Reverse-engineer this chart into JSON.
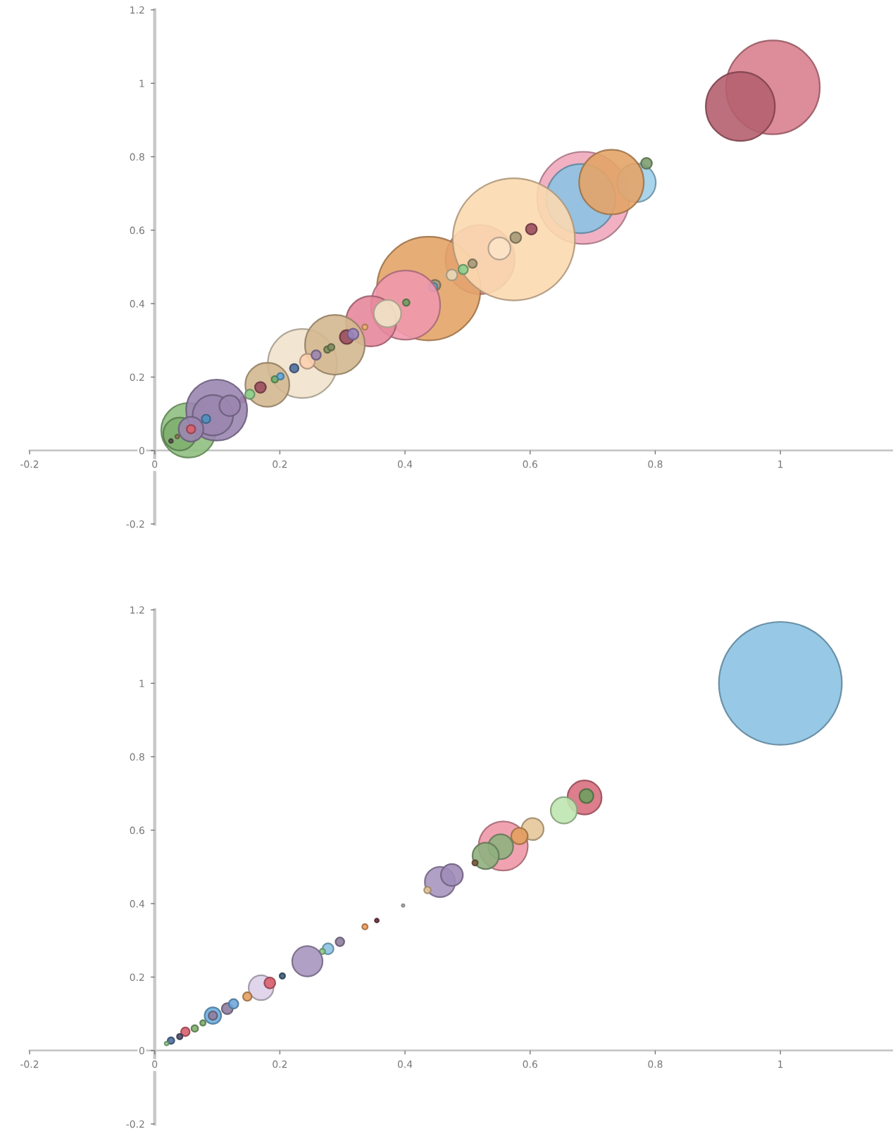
{
  "chart_data": [
    {
      "type": "bubble",
      "xlim": [
        -0.2,
        1.18
      ],
      "ylim": [
        -0.2,
        1.2
      ],
      "xticks": [
        -0.2,
        0,
        0.2,
        0.4,
        0.6,
        0.8,
        1
      ],
      "yticks": [
        -0.2,
        0,
        0.2,
        0.4,
        0.6,
        0.8,
        1,
        1.2
      ],
      "grid": false,
      "marker": "circle",
      "x": [
        0.988,
        0.936,
        0.685,
        0.681,
        0.77,
        0.786,
        0.73,
        0.52,
        0.438,
        0.574,
        0.551,
        0.602,
        0.577,
        0.508,
        0.493,
        0.475,
        0.448,
        0.445,
        0.401,
        0.402,
        0.346,
        0.372,
        0.336,
        0.236,
        0.288,
        0.307,
        0.317,
        0.244,
        0.258,
        0.276,
        0.282,
        0.223,
        0.18,
        0.169,
        0.192,
        0.201,
        0.152,
        0.141,
        0.054,
        0.04,
        0.099,
        0.093,
        0.12,
        0.058,
        0.058,
        0.082,
        0.026,
        0.036
      ],
      "values": [
        0.989,
        0.937,
        0.688,
        0.686,
        0.729,
        0.782,
        0.731,
        0.52,
        0.441,
        0.575,
        0.55,
        0.603,
        0.58,
        0.509,
        0.493,
        0.478,
        0.45,
        0.445,
        0.396,
        0.403,
        0.352,
        0.373,
        0.336,
        0.237,
        0.288,
        0.309,
        0.317,
        0.243,
        0.26,
        0.275,
        0.281,
        0.224,
        0.179,
        0.172,
        0.194,
        0.202,
        0.153,
        0.138,
        0.055,
        0.045,
        0.11,
        0.096,
        0.122,
        0.058,
        0.058,
        0.086,
        0.026,
        0.038
      ],
      "sizes": [
        0.59,
        0.32,
        0.57,
        0.32,
        0.1,
        0.008,
        0.28,
        0.32,
        0.72,
        1,
        0.033,
        0.008,
        0.008,
        0.005,
        0.006,
        0.008,
        0.008,
        0.005,
        0.32,
        0.003,
        0.17,
        0.05,
        0.002,
        0.32,
        0.24,
        0.013,
        0.008,
        0.015,
        0.006,
        0.003,
        0.003,
        0.005,
        0.13,
        0.008,
        0.003,
        0.003,
        0.006,
        0.002,
        0.2,
        0.073,
        0.25,
        0.11,
        0.029,
        0.041,
        0.005,
        0.005,
        0.001,
        0.001
      ],
      "colors": [
        "#d9808f",
        "#b5606f",
        "#efa8bc",
        "#8cc3e3",
        "#9fcfea",
        "#7f9f6f",
        "#e3a468",
        "#e58fa4",
        "#e3a468",
        "#fbd9b0",
        "#fbe3c8",
        "#9b4f5f",
        "#a69a78",
        "#a69a78",
        "#8fcf8f",
        "#e8d8b8",
        "#a69a78",
        "#6fa8dc",
        "#ef98ac",
        "#6f9f5f",
        "#e5889c",
        "#f0e4c8",
        "#f0b070",
        "#f1e2cc",
        "#d4b890",
        "#9b4f5f",
        "#9b86c0",
        "#fbd0b0",
        "#9b86b0",
        "#7f8f5f",
        "#7f8f5f",
        "#4f6f9f",
        "#d4b890",
        "#9b4f5f",
        "#6faf6f",
        "#5fa8dc",
        "#8fcf8f",
        "#d9506f",
        "#8fbf7f",
        "#7faf6f",
        "#9b86b0",
        "#9b86b0",
        "#9b86b0",
        "#9b86b0",
        "#d9606f",
        "#4f8fbf",
        "#5f4f4f",
        "#8f7f5f"
      ]
    },
    {
      "type": "bubble",
      "xlim": [
        -0.2,
        1.18
      ],
      "ylim": [
        -0.2,
        1.2
      ],
      "xticks": [
        -0.2,
        0,
        0.2,
        0.4,
        0.6,
        0.8,
        1
      ],
      "yticks": [
        -0.2,
        0,
        0.2,
        0.4,
        0.6,
        0.8,
        1,
        1.2
      ],
      "grid": false,
      "marker": "circle",
      "x": [
        1.0,
        0.687,
        0.69,
        0.654,
        0.557,
        0.604,
        0.583,
        0.553,
        0.529,
        0.512,
        0.456,
        0.475,
        0.436,
        0.397,
        0.355,
        0.336,
        0.296,
        0.277,
        0.268,
        0.244,
        0.17,
        0.184,
        0.204,
        0.148,
        0.116,
        0.126,
        0.093,
        0.093,
        0.077,
        0.064,
        0.049,
        0.04,
        0.026,
        0.019
      ],
      "values": [
        1.0,
        0.689,
        0.693,
        0.654,
        0.557,
        0.603,
        0.584,
        0.555,
        0.53,
        0.511,
        0.459,
        0.478,
        0.437,
        0.395,
        0.354,
        0.337,
        0.296,
        0.277,
        0.27,
        0.243,
        0.171,
        0.184,
        0.203,
        0.147,
        0.114,
        0.127,
        0.095,
        0.095,
        0.075,
        0.06,
        0.051,
        0.038,
        0.027,
        0.019
      ],
      "sizes": [
        1,
        0.077,
        0.013,
        0.046,
        0.16,
        0.032,
        0.018,
        0.041,
        0.046,
        0.002,
        0.061,
        0.032,
        0.003,
        0.0005,
        0.001,
        0.002,
        0.005,
        0.008,
        0.002,
        0.061,
        0.041,
        0.008,
        0.002,
        0.005,
        0.008,
        0.006,
        0.018,
        0.005,
        0.002,
        0.003,
        0.005,
        0.002,
        0.003,
        0.001
      ],
      "colors": [
        "#8cc3e3",
        "#d9707f",
        "#6f9f5f",
        "#bfe6b0",
        "#ef98a8",
        "#e6c69a",
        "#e3a060",
        "#8fb07f",
        "#8fb07f",
        "#7f5f3f",
        "#a896c0",
        "#a08cb8",
        "#e6c69a",
        "#bfbfbf",
        "#6f2f3f",
        "#f0a060",
        "#8f7fa0",
        "#8cc3e3",
        "#8fcf8f",
        "#a896c0",
        "#ddd0e8",
        "#d9606f",
        "#3f5f7f",
        "#e3a060",
        "#8f7fa0",
        "#6fa8dc",
        "#6fb0e0",
        "#8f7fa0",
        "#7faf6f",
        "#7faf6f",
        "#d9606f",
        "#4f4f6f",
        "#4f6f9f",
        "#8fcf8f"
      ]
    }
  ]
}
